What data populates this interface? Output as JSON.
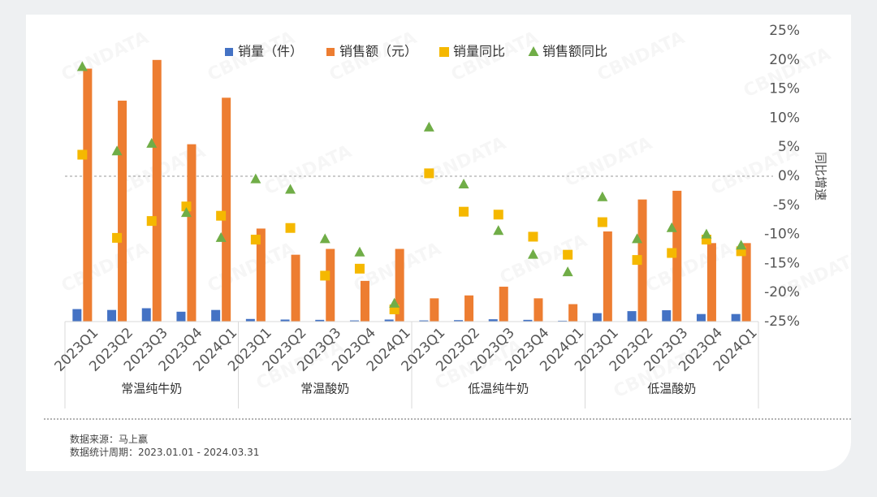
{
  "chart_data": {
    "type": "bar",
    "categories": [
      "2023Q1",
      "2023Q2",
      "2023Q3",
      "2023Q4",
      "2024Q1",
      "2023Q1",
      "2023Q2",
      "2023Q3",
      "2023Q4",
      "2024Q1",
      "2023Q1",
      "2023Q2",
      "2023Q3",
      "2023Q4",
      "2024Q1",
      "2023Q1",
      "2023Q2",
      "2023Q3",
      "2023Q4",
      "2024Q1"
    ],
    "groups": [
      {
        "label": "常温纯牛奶",
        "count": 5
      },
      {
        "label": "常温酸奶",
        "count": 5
      },
      {
        "label": "低温纯牛奶",
        "count": 5
      },
      {
        "label": "低温酸奶",
        "count": 5
      }
    ],
    "series": [
      {
        "name": "销量（件）",
        "type": "bar",
        "axis": "left",
        "color": "#4472c4",
        "values": [
          4.3,
          4.0,
          4.6,
          3.4,
          4.0,
          0.9,
          0.7,
          0.6,
          0.4,
          0.7,
          0.4,
          0.5,
          0.8,
          0.6,
          0.3,
          2.9,
          3.6,
          3.9,
          2.6,
          2.6
        ]
      },
      {
        "name": "销售额（元）",
        "type": "bar",
        "axis": "left",
        "color": "#ed7d31",
        "values": [
          87,
          76,
          90,
          61,
          77,
          32,
          23,
          25,
          14,
          25,
          8,
          9,
          12,
          8,
          6,
          31,
          42,
          45,
          27,
          27
        ]
      },
      {
        "name": "销量同比",
        "type": "scatter",
        "marker": "square",
        "axis": "right",
        "color": "#f5b800",
        "values": [
          3.7,
          -10.6,
          -7.7,
          -5.2,
          -6.8,
          -10.9,
          -8.9,
          -17.1,
          -15.9,
          -22.9,
          0.5,
          -6.1,
          -6.6,
          -10.4,
          -13.5,
          -7.9,
          -14.4,
          -13.2,
          -10.9,
          -12.9
        ]
      },
      {
        "name": "销售额同比",
        "type": "scatter",
        "marker": "triangle",
        "axis": "right",
        "color": "#70ad47",
        "values": [
          18.8,
          4.3,
          5.6,
          -6.3,
          -10.6,
          -0.5,
          -2.3,
          -10.8,
          -13.1,
          -21.9,
          8.4,
          -1.4,
          -9.4,
          -13.5,
          -16.5,
          -3.6,
          -10.8,
          -8.9,
          -10.0,
          -11.9
        ]
      }
    ],
    "y_left_range": [
      0,
      100
    ],
    "y_right": {
      "label": "同比增速",
      "range": [
        -25,
        25
      ],
      "ticks": [
        "25%",
        "20%",
        "15%",
        "10%",
        "5%",
        "0%",
        "-5%",
        "-10%",
        "-15%",
        "-20%",
        "-25%"
      ]
    },
    "zero_reference_line": true,
    "legend_position": "top",
    "grid": false
  },
  "source": {
    "line1": "数据来源：马上赢",
    "line2": "数据统计周期：2023.01.01 - 2024.03.31"
  },
  "watermark_text": "CBNDATA"
}
